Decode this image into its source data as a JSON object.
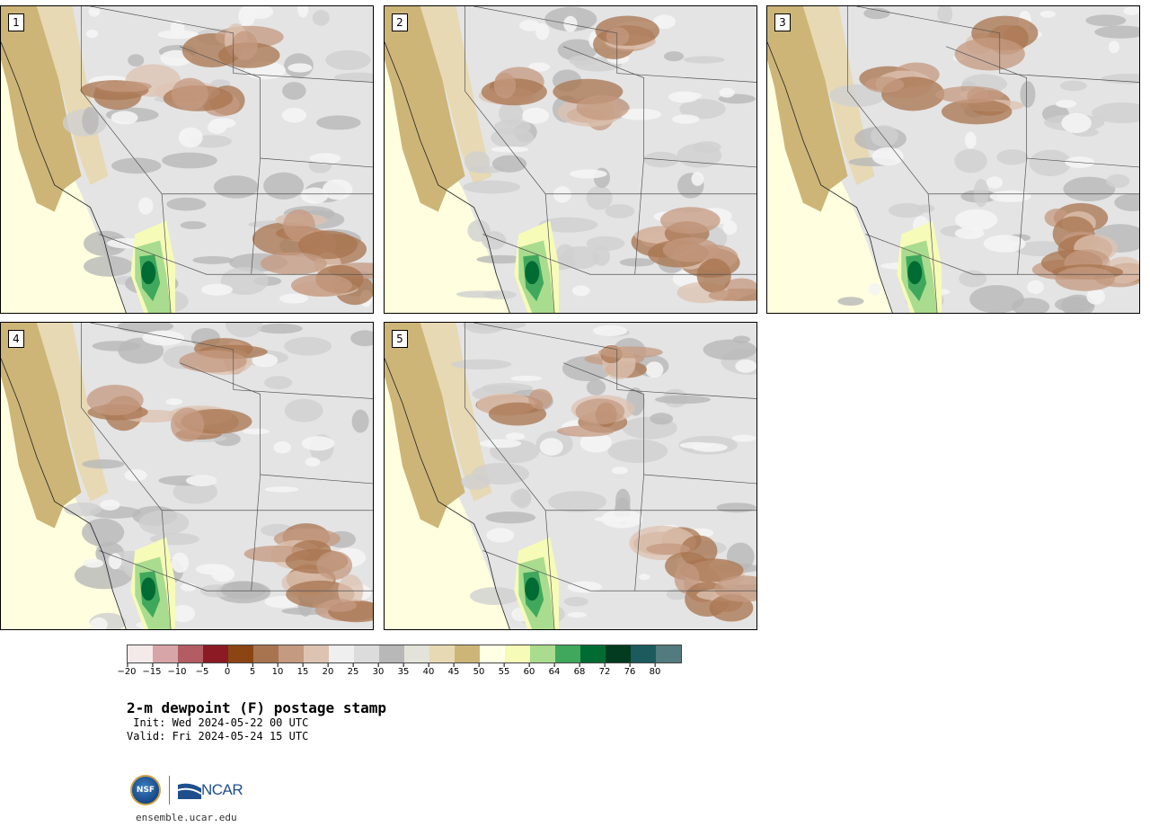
{
  "panels": [
    {
      "label": "1"
    },
    {
      "label": "2"
    },
    {
      "label": "3"
    },
    {
      "label": "4"
    },
    {
      "label": "5"
    }
  ],
  "legend": {
    "ticks": [
      "−20",
      "−15",
      "−10",
      "−5",
      "0",
      "5",
      "10",
      "15",
      "20",
      "25",
      "30",
      "35",
      "40",
      "45",
      "50",
      "55",
      "60",
      "64",
      "68",
      "72",
      "76",
      "80"
    ],
    "colors": [
      "#f5eaea",
      "#d7a5a8",
      "#b35c63",
      "#8c1a24",
      "#8b4513",
      "#a8744f",
      "#c49a80",
      "#ddc3b2",
      "#efefef",
      "#dcdcdc",
      "#b8b8b8",
      "#e3e3d9",
      "#e6d9b4",
      "#cdb578",
      "#ffffe6",
      "#f6fbb8",
      "#a9dc8e",
      "#3fa85c",
      "#006b32",
      "#023b1f",
      "#1c5a5e",
      "#537a7e"
    ]
  },
  "title": "2-m dewpoint (F) postage stamp",
  "init": " Init: Wed 2024-05-22 00 UTC",
  "valid": "Valid: Fri 2024-05-24 15 UTC",
  "logos": {
    "nsf": "NSF",
    "ncar": "NCAR"
  },
  "url": "ensemble.ucar.edu"
}
